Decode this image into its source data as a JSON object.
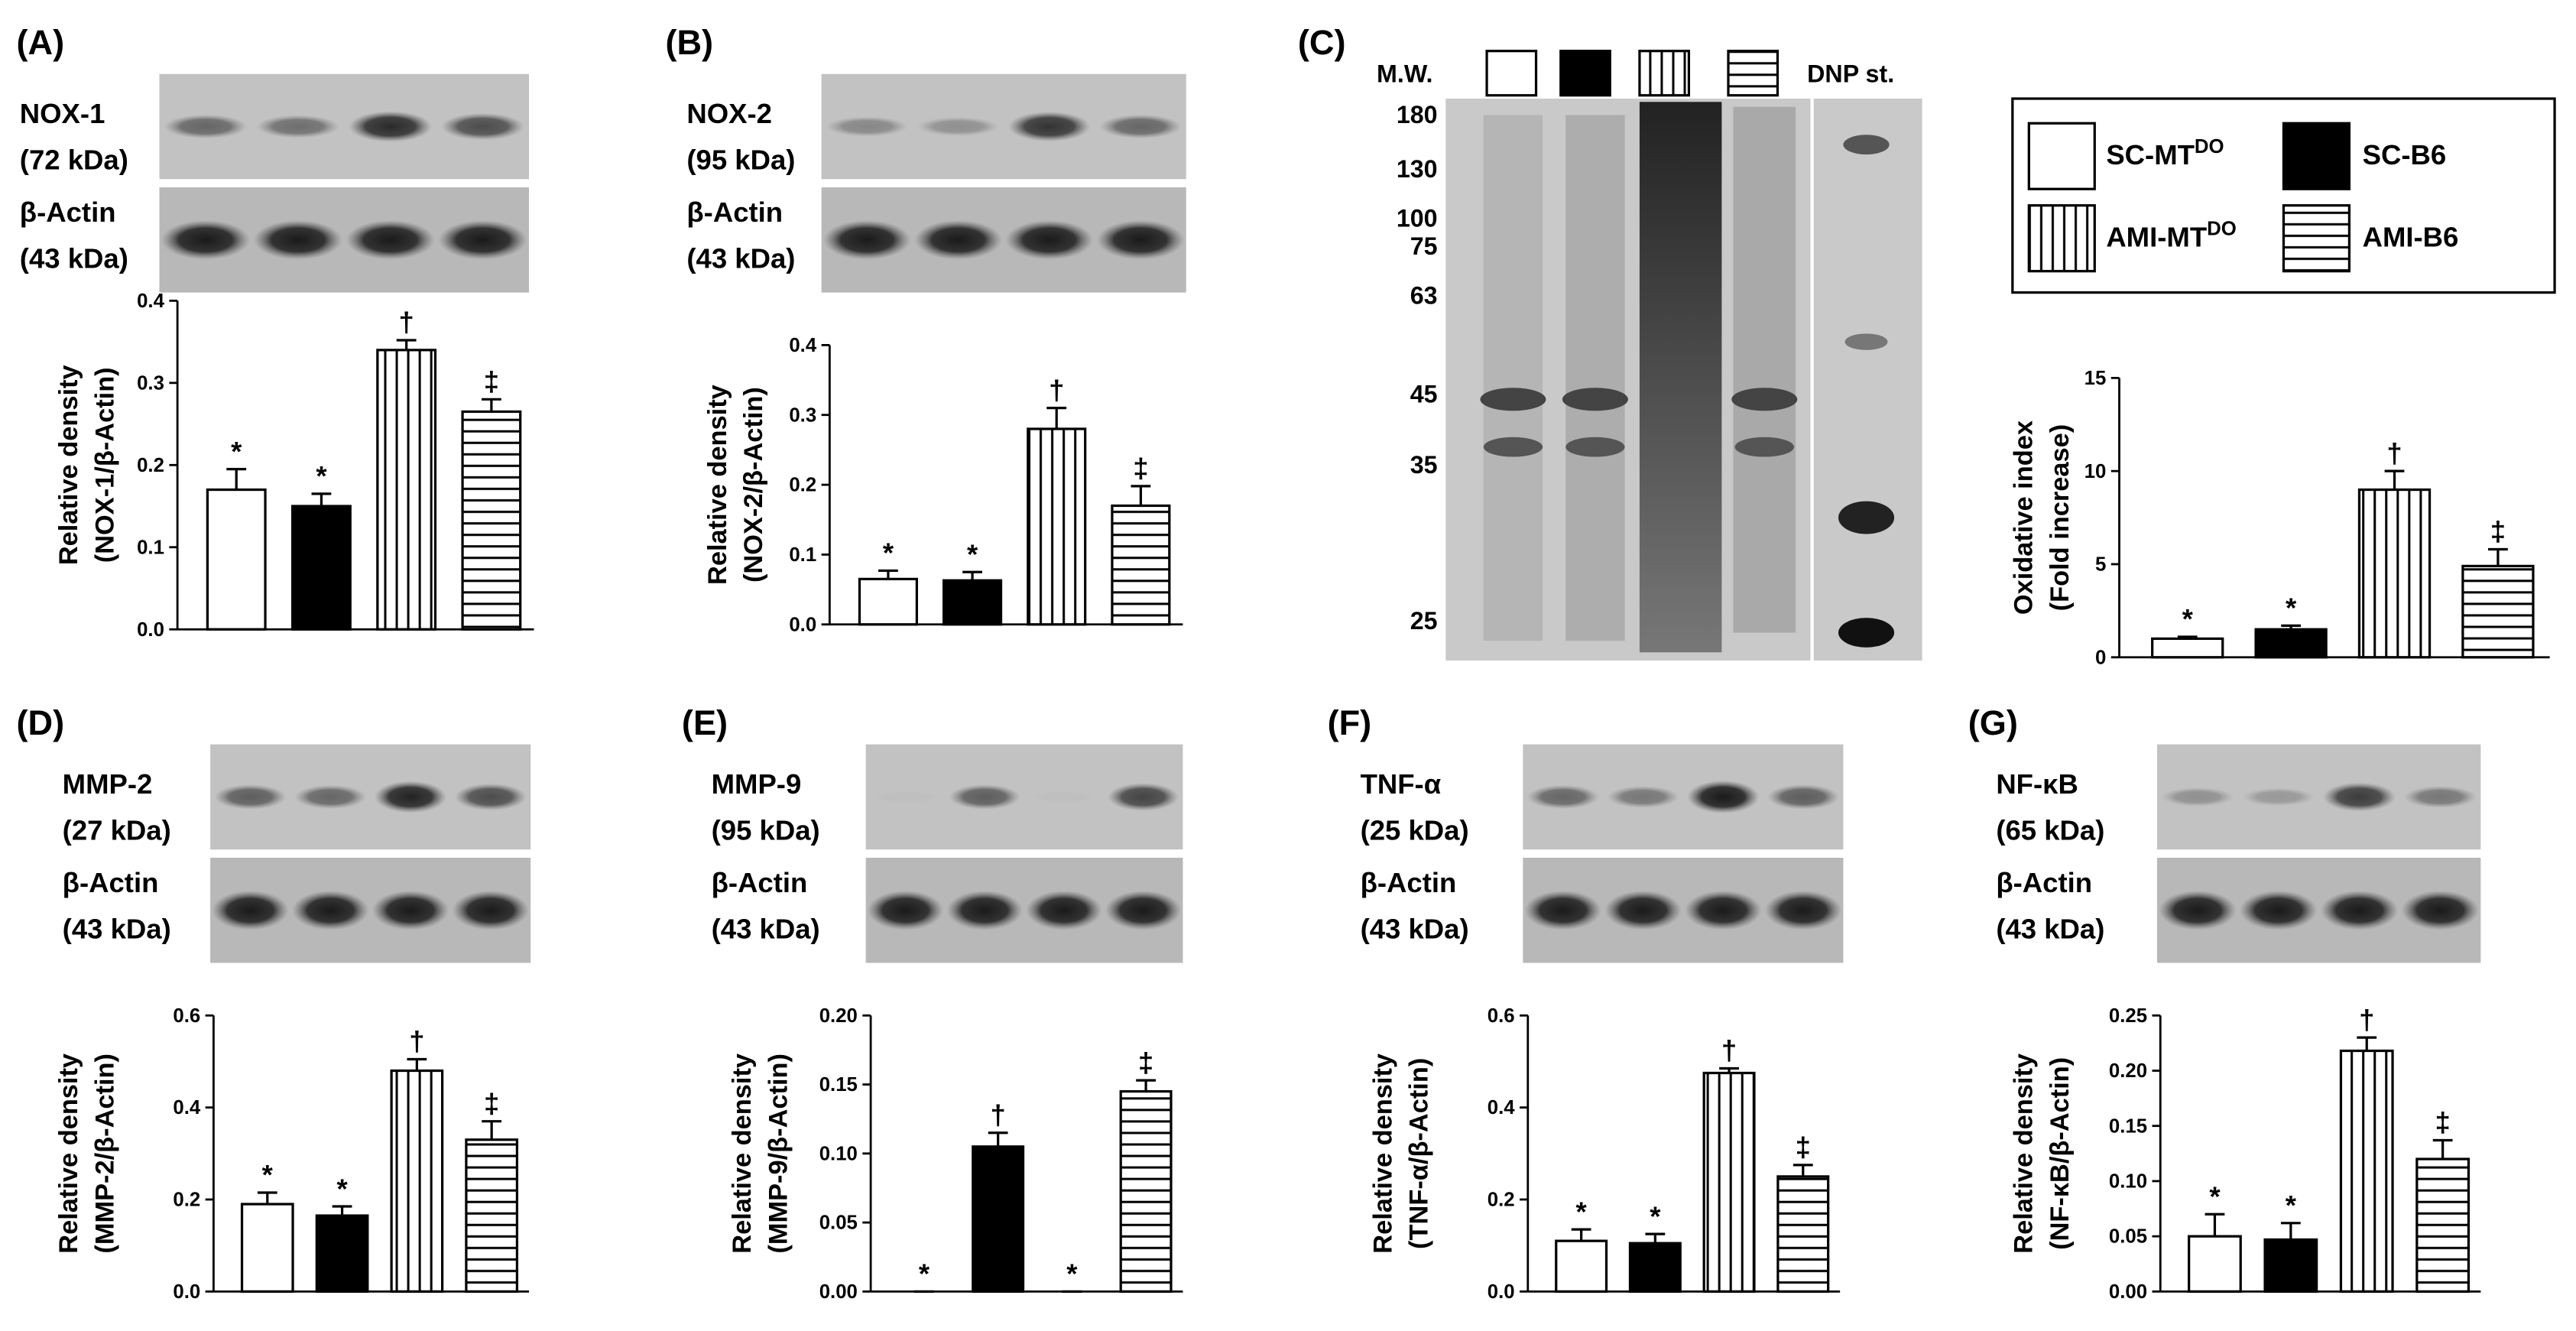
{
  "legend": [
    {
      "text": "SC-MT",
      "sup": "DO"
    },
    {
      "text": "SC-B6"
    },
    {
      "text": "AMI-MT",
      "sup": "DO"
    },
    {
      "text": "AMI-B6"
    }
  ],
  "fills": [
    "#ffffff",
    "#000000",
    "vertical",
    "horizontal"
  ],
  "gel": {
    "label": "(C)",
    "mw_title": "M.W.",
    "standard": "DNP st.",
    "mw": [
      "180",
      "130",
      "100",
      "75",
      "63",
      "45",
      "35",
      "25"
    ]
  },
  "chart_data": [
    {
      "type": "bar",
      "panel": "(A)",
      "blot": [
        "NOX-1",
        "(72 kDa)",
        "β-Actin",
        "(43 kDa)"
      ],
      "ylabel": [
        "Relative density",
        "(NOX-1/β-Actin)"
      ],
      "ylim": [
        0,
        0.4
      ],
      "yticks": [
        {
          "value": 0,
          "label": "0.0"
        },
        0.1,
        0.2,
        0.3,
        0.4
      ],
      "values": [
        0.17,
        0.15,
        0.34,
        0.265
      ],
      "errors": [
        0.025,
        0.015,
        0.012,
        0.015
      ],
      "annotations": [
        "*",
        "*",
        "†",
        "‡"
      ]
    },
    {
      "type": "bar",
      "panel": "(B)",
      "blot": [
        "NOX-2",
        "(95 kDa)",
        "β-Actin",
        "(43 kDa)"
      ],
      "ylabel": [
        "Relative density",
        "(NOX-2/β-Actin)"
      ],
      "ylim": [
        0,
        0.4
      ],
      "yticks": [
        {
          "value": 0,
          "label": "0.0"
        },
        0.1,
        0.2,
        0.3,
        0.4
      ],
      "values": [
        0.065,
        0.063,
        0.28,
        0.17
      ],
      "errors": [
        0.012,
        0.012,
        0.03,
        0.028
      ],
      "annotations": [
        "*",
        "*",
        "†",
        "‡"
      ]
    },
    {
      "type": "bar",
      "ylabel": [
        "Oxidative index",
        "(Fold increase)"
      ],
      "ylim": [
        0,
        15
      ],
      "yticks": [
        0,
        5,
        10,
        15
      ],
      "values": [
        1.0,
        1.5,
        9.0,
        4.9
      ],
      "errors": [
        0.1,
        0.2,
        1.0,
        0.9
      ],
      "annotations": [
        "*",
        "*",
        "†",
        "‡"
      ]
    },
    {
      "type": "bar",
      "panel": "(D)",
      "blot": [
        "MMP-2",
        "(27 kDa)",
        "β-Actin",
        "(43 kDa)"
      ],
      "ylabel": [
        "Relative density",
        "(MMP-2/β-Actin)"
      ],
      "ylim": [
        0,
        0.6
      ],
      "yticks": [
        {
          "value": 0,
          "label": "0.0"
        },
        0.2,
        0.4,
        0.6
      ],
      "values": [
        0.19,
        0.165,
        0.48,
        0.33
      ],
      "errors": [
        0.025,
        0.02,
        0.025,
        0.04
      ],
      "annotations": [
        "*",
        "*",
        "†",
        "‡"
      ]
    },
    {
      "type": "bar",
      "panel": "(E)",
      "blot": [
        "MMP-9",
        "(95 kDa)",
        "β-Actin",
        "(43 kDa)"
      ],
      "ylabel": [
        "Relative density",
        "(MMP-9/β-Actin)"
      ],
      "ylim": [
        0,
        0.2
      ],
      "yticks": [
        {
          "value": 0,
          "label": "0.00"
        },
        0.05,
        {
          "value": 0.1,
          "label": "0.10"
        },
        0.15,
        {
          "value": 0.2,
          "label": "0.20"
        }
      ],
      "values": [
        0,
        0.105,
        0,
        0.145
      ],
      "errors": [
        0,
        0.01,
        0,
        0.008
      ],
      "annotations": [
        "*",
        "†",
        "*",
        "‡"
      ]
    },
    {
      "type": "bar",
      "panel": "(F)",
      "blot": [
        "TNF-α",
        "(25 kDa)",
        "β-Actin",
        "(43 kDa)"
      ],
      "ylabel": [
        "Relative density",
        "(TNF-α/β-Actin)"
      ],
      "ylim": [
        0,
        0.6
      ],
      "yticks": [
        {
          "value": 0,
          "label": "0.0"
        },
        0.2,
        0.4,
        0.6
      ],
      "values": [
        0.11,
        0.105,
        0.475,
        0.25
      ],
      "errors": [
        0.025,
        0.02,
        0.01,
        0.025
      ],
      "annotations": [
        "*",
        "*",
        "†",
        "‡"
      ]
    },
    {
      "type": "bar",
      "panel": "(G)",
      "blot": [
        "NF-κB",
        "(65 kDa)",
        "β-Actin",
        "(43 kDa)"
      ],
      "ylabel": [
        "Relative density",
        "(NF-κB/β-Actin)"
      ],
      "ylim": [
        0,
        0.25
      ],
      "yticks": [
        {
          "value": 0,
          "label": "0.00"
        },
        0.05,
        {
          "value": 0.1,
          "label": "0.10"
        },
        0.15,
        {
          "value": 0.2,
          "label": "0.20"
        },
        0.25
      ],
      "values": [
        0.05,
        0.047,
        0.218,
        0.12
      ],
      "errors": [
        0.02,
        0.015,
        0.012,
        0.017
      ],
      "annotations": [
        "*",
        "*",
        "†",
        "‡"
      ]
    }
  ]
}
